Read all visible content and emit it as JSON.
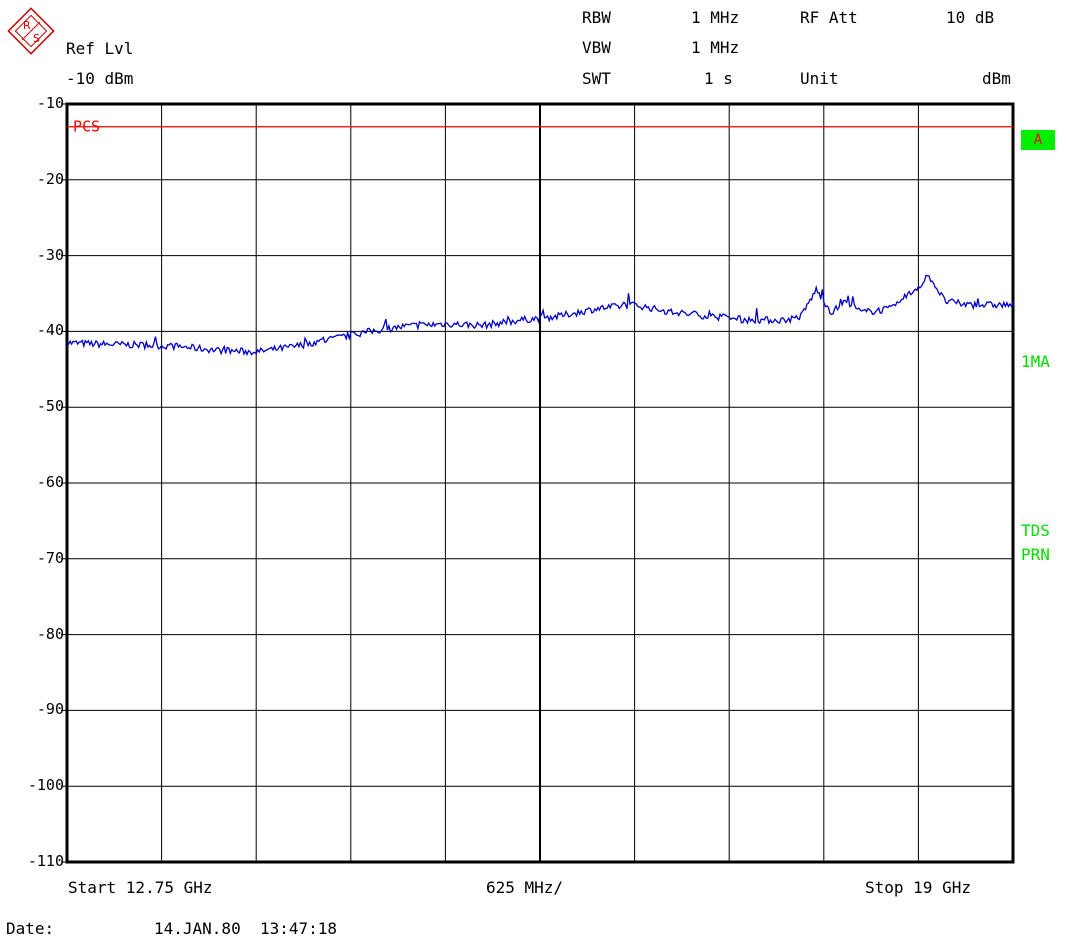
{
  "header": {
    "ref_lvl_label": "Ref Lvl",
    "ref_lvl_value": "-10 dBm",
    "rbw_label": "RBW",
    "rbw_value": "1 MHz",
    "vbw_label": "VBW",
    "vbw_value": "1 MHz",
    "swt_label": "SWT",
    "swt_value": "1 s",
    "rf_att_label": "RF Att",
    "rf_att_value": "10 dB",
    "unit_label": "Unit",
    "unit_value": "dBm"
  },
  "side": {
    "trace_badge": "A",
    "mode_1": "1MA",
    "mode_2": "TDS",
    "mode_3": "PRN"
  },
  "footer": {
    "start": "Start 12.75 GHz",
    "span_div": "625 MHz/",
    "stop": "Stop 19 GHz",
    "date_label": "Date:",
    "date_value": "14.JAN.80  13:47:18"
  },
  "colors": {
    "trace": "#0000cc",
    "limit": "#ff0000",
    "grid": "#000000",
    "status": "#00dd00"
  },
  "chart_data": {
    "type": "line",
    "title": "",
    "xlabel": "",
    "ylabel": "",
    "x_unit": "GHz",
    "y_unit": "dBm",
    "xlim": [
      12.75,
      19.0
    ],
    "ylim": [
      -110,
      -10
    ],
    "y_ticks": [
      -10,
      -20,
      -30,
      -40,
      -50,
      -60,
      -70,
      -80,
      -90,
      -100,
      -110
    ],
    "y_tick_labels": [
      "-10",
      "-20",
      "-30",
      "-40",
      "-50",
      "-60",
      "-70",
      "-80",
      "-90",
      "-100",
      "-110"
    ],
    "grid": true,
    "limit_line": {
      "name": "PCS",
      "value": -13
    },
    "series": [
      {
        "x": [
          12.75,
          13.0,
          13.25,
          13.5,
          13.75,
          14.0,
          14.25,
          14.5,
          14.75,
          15.0,
          15.25,
          15.5,
          15.75,
          16.0,
          16.25,
          16.5,
          16.75,
          17.0,
          17.25,
          17.5,
          17.6,
          17.7,
          17.8,
          17.9,
          18.0,
          18.2,
          18.35,
          18.45,
          18.55,
          18.7,
          18.85,
          19.0
        ],
        "values": [
          -41.5,
          -41.7,
          -41.8,
          -42.0,
          -42.5,
          -42.7,
          -42.0,
          -41.0,
          -40.0,
          -39.3,
          -39.0,
          -39.2,
          -38.5,
          -38.0,
          -37.0,
          -36.5,
          -37.5,
          -38.0,
          -38.5,
          -38.5,
          -38.0,
          -34.5,
          -37.5,
          -36.0,
          -37.5,
          -37.0,
          -34.5,
          -32.8,
          -36.0,
          -36.5,
          -36.5,
          -36.5
        ]
      }
    ]
  }
}
